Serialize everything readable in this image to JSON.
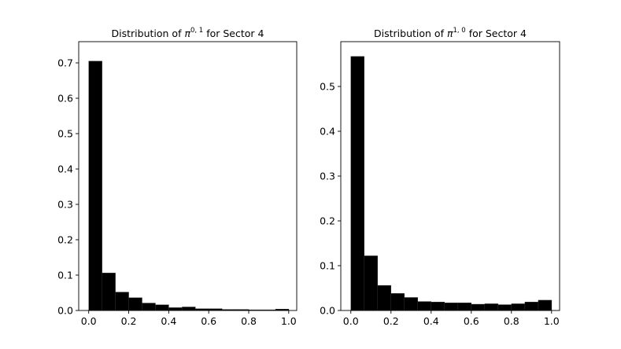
{
  "chart_data": [
    {
      "type": "bar",
      "title_prefix": "Distribution of ",
      "title_symbol": "π",
      "title_superscript": "0, 1",
      "title_suffix": " for Sector 4",
      "xlabel": "",
      "ylabel": "",
      "xlim": [
        -0.05,
        1.04
      ],
      "ylim": [
        0,
        0.76
      ],
      "bin_width": 0.0667,
      "bin_edges_start": 0.0,
      "values": [
        0.705,
        0.106,
        0.052,
        0.036,
        0.021,
        0.016,
        0.008,
        0.01,
        0.005,
        0.005,
        0.003,
        0.003,
        0.002,
        0.002,
        0.004
      ],
      "xticks": [
        "0.0",
        "0.2",
        "0.4",
        "0.6",
        "0.8",
        "1.0"
      ],
      "yticks": [
        "0.0",
        "0.1",
        "0.2",
        "0.3",
        "0.4",
        "0.5",
        "0.6",
        "0.7"
      ],
      "bar_color": "#000000",
      "grid": false
    },
    {
      "type": "bar",
      "title_prefix": "Distribution of ",
      "title_symbol": "π",
      "title_superscript": "1, 0",
      "title_suffix": " for Sector 4",
      "xlabel": "",
      "ylabel": "",
      "xlim": [
        -0.05,
        1.04
      ],
      "ylim": [
        0,
        0.6
      ],
      "bin_width": 0.0667,
      "bin_edges_start": 0.0,
      "values": [
        0.567,
        0.122,
        0.056,
        0.038,
        0.029,
        0.02,
        0.019,
        0.017,
        0.017,
        0.014,
        0.015,
        0.013,
        0.015,
        0.019,
        0.023
      ],
      "xticks": [
        "0.0",
        "0.2",
        "0.4",
        "0.6",
        "0.8",
        "1.0"
      ],
      "yticks": [
        "0.0",
        "0.1",
        "0.2",
        "0.3",
        "0.4",
        "0.5"
      ],
      "bar_color": "#000000",
      "grid": false
    }
  ]
}
